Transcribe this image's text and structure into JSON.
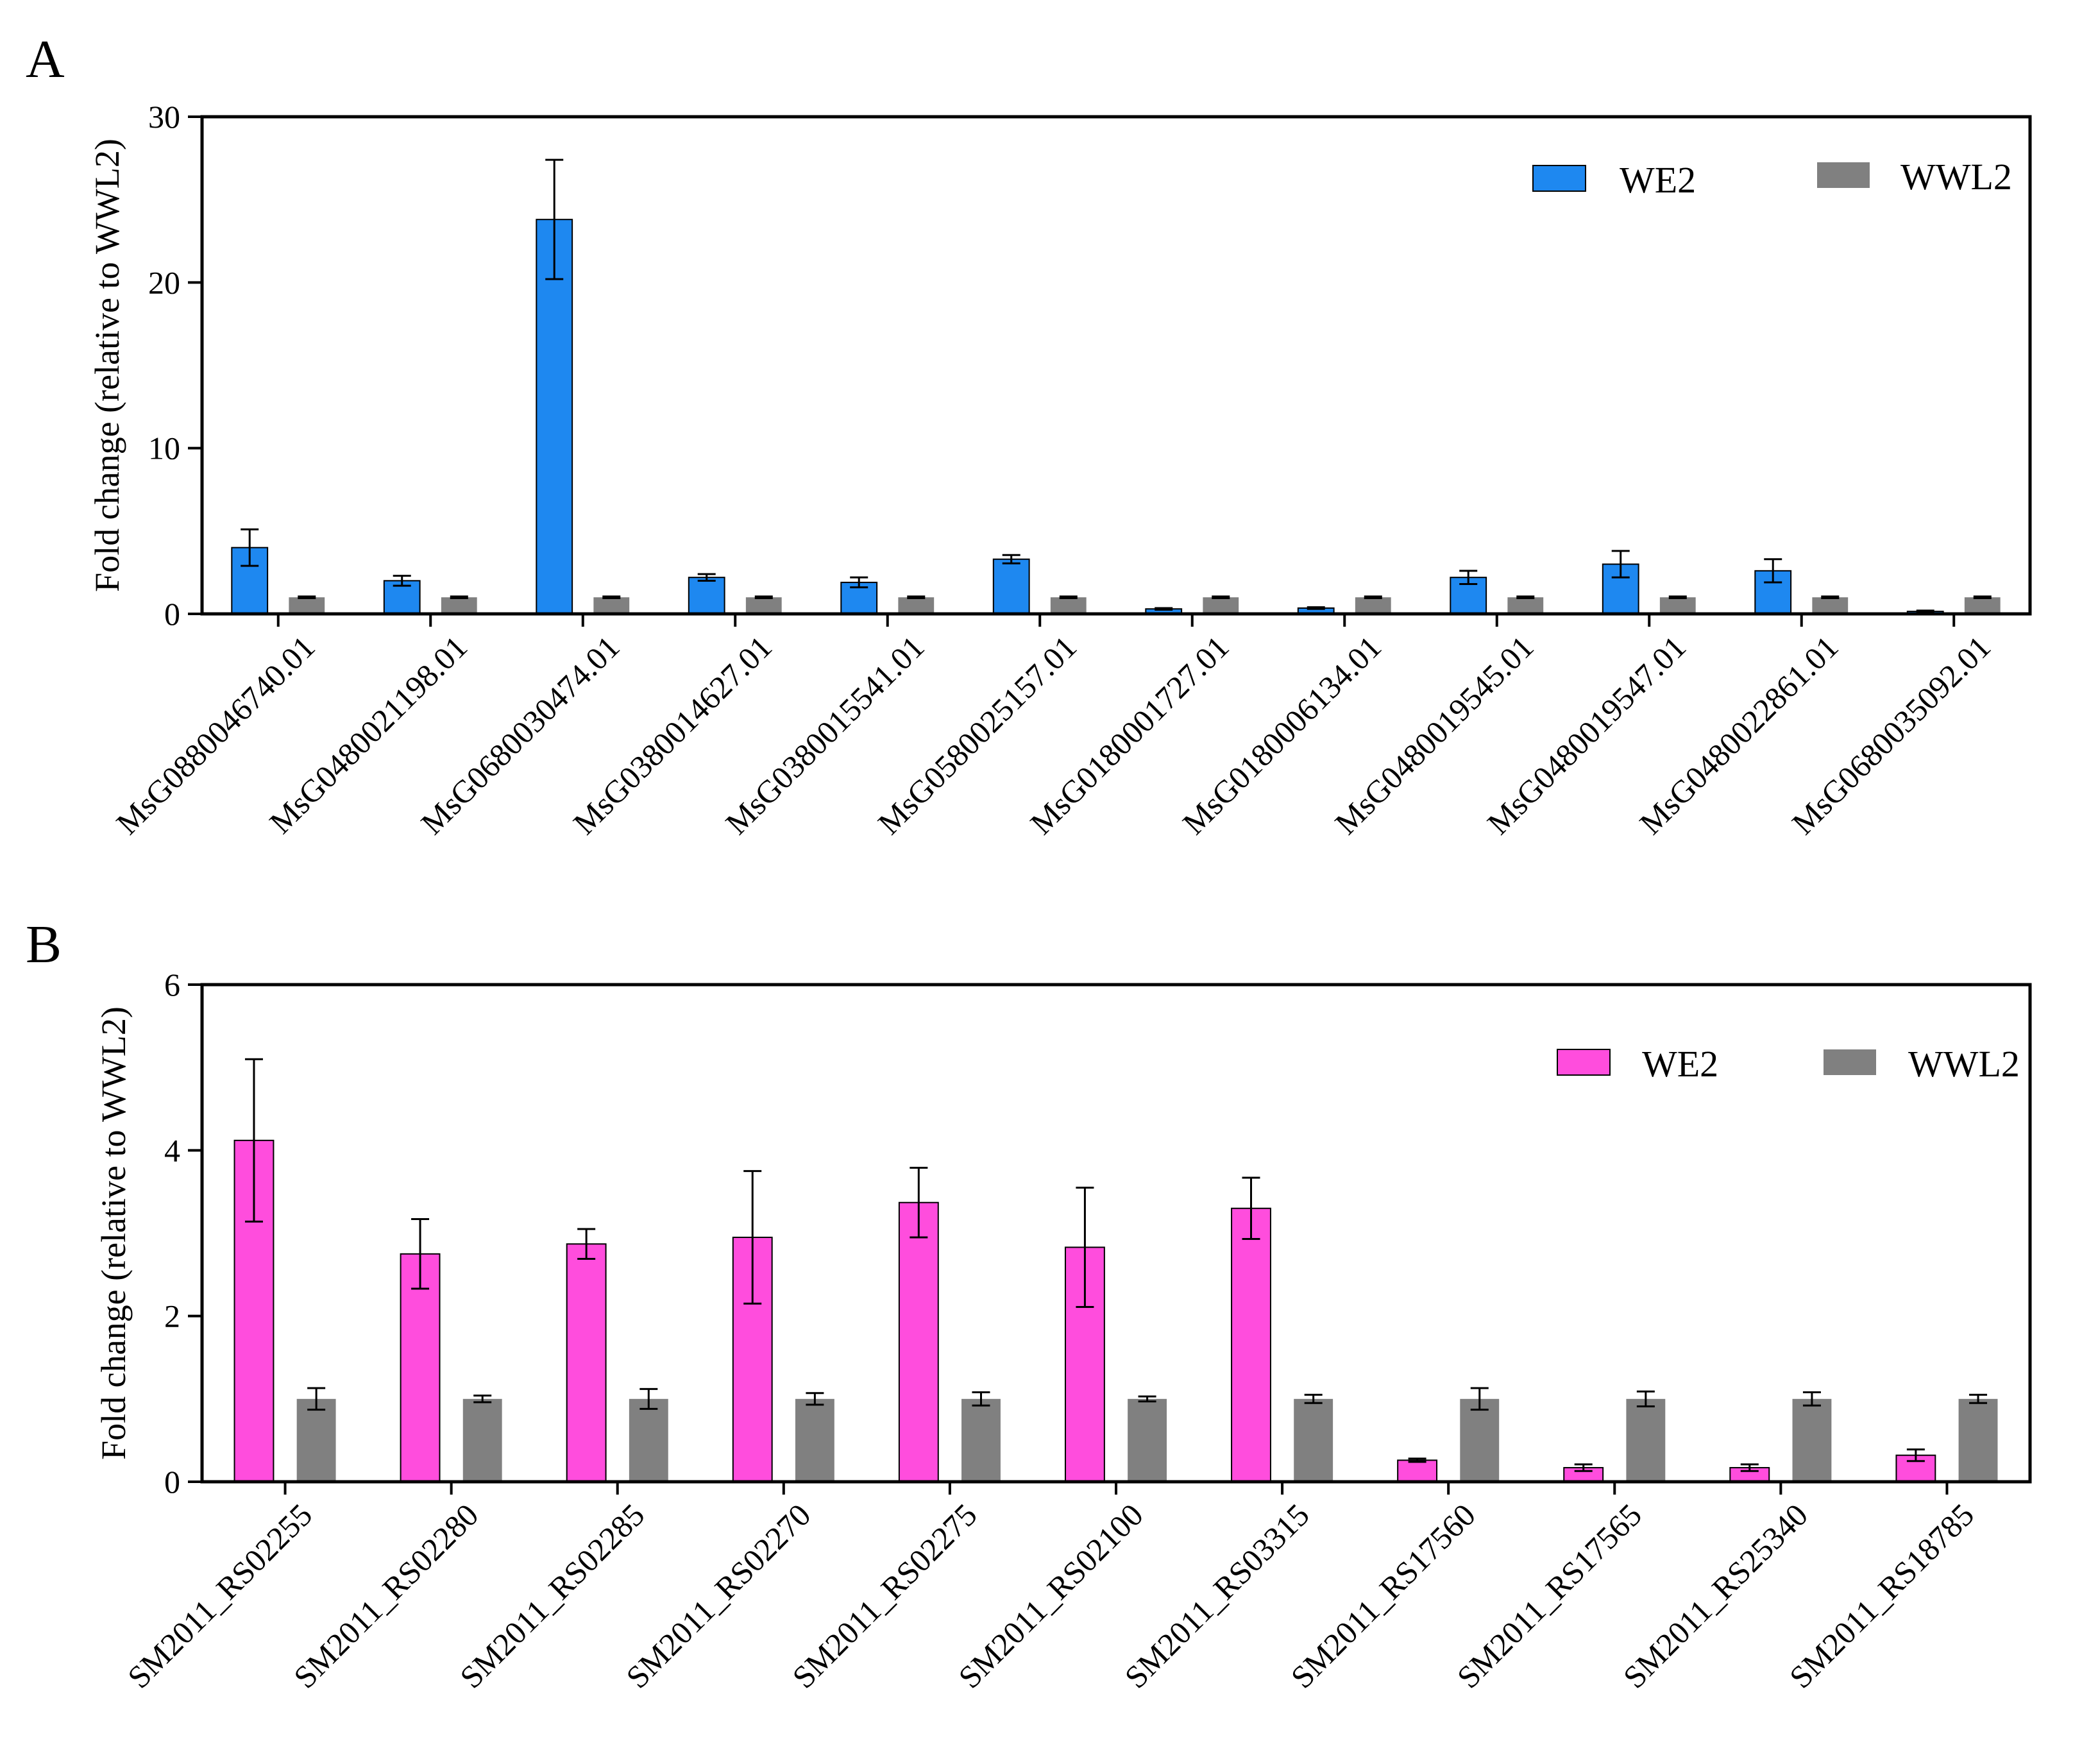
{
  "chart_data": [
    {
      "panel_label": "A",
      "type": "bar",
      "ylabel": "Fold change (relative to WWL2)",
      "ylim": [
        0,
        30
      ],
      "yticks": [
        0,
        10,
        20,
        30
      ],
      "categories": [
        "MsG0880046740.01",
        "MsG0480021198.01",
        "MsG0680030474.01",
        "MsG0380014627.01",
        "MsG0380015541.01",
        "MsG0580025157.01",
        "MsG0180001727.01",
        "MsG0180006134.01",
        "MsG0480019545.01",
        "MsG0480019547.01",
        "MsG0480022861.01",
        "MsG0680035092.01"
      ],
      "legend_position": "top-right",
      "series": [
        {
          "name": "WE2",
          "color": "#1e88f0",
          "values": [
            4.0,
            2.0,
            23.8,
            2.2,
            1.9,
            3.3,
            0.3,
            0.35,
            2.2,
            3.0,
            2.6,
            0.15
          ],
          "errors": [
            1.1,
            0.3,
            3.6,
            0.2,
            0.3,
            0.25,
            0.05,
            0.05,
            0.4,
            0.8,
            0.7,
            0.05
          ]
        },
        {
          "name": "WWL2",
          "color": "#808080",
          "values": [
            1,
            1,
            1,
            1,
            1,
            1,
            1,
            1,
            1,
            1,
            1,
            1
          ],
          "errors": [
            0.05,
            0.05,
            0.05,
            0.05,
            0.05,
            0.05,
            0.05,
            0.05,
            0.05,
            0.05,
            0.05,
            0.05
          ]
        }
      ]
    },
    {
      "panel_label": "B",
      "type": "bar",
      "ylabel": "Fold change (relative to WWL2)",
      "ylim": [
        0,
        6
      ],
      "yticks": [
        0,
        2,
        4,
        6
      ],
      "categories": [
        "SM2011_RS02255",
        "SM2011_RS02280",
        "SM2011_RS02285",
        "SM2011_RS02270",
        "SM2011_RS02275",
        "SM2011_RS02100",
        "SM2011_RS03315",
        "SM2011_RS17560",
        "SM2011_RS17565",
        "SM2011_RS25340",
        "SM2011_RS18785"
      ],
      "legend_position": "top-right",
      "series": [
        {
          "name": "WE2",
          "color": "#ff4ddd",
          "values": [
            4.12,
            2.75,
            2.87,
            2.95,
            3.37,
            2.83,
            3.3,
            0.26,
            0.17,
            0.17,
            0.32
          ],
          "errors": [
            0.98,
            0.42,
            0.18,
            0.8,
            0.42,
            0.72,
            0.37,
            0.02,
            0.04,
            0.04,
            0.07
          ]
        },
        {
          "name": "WWL2",
          "color": "#808080",
          "values": [
            1,
            1,
            1,
            1,
            1,
            1,
            1,
            1,
            1,
            1,
            1
          ],
          "errors": [
            0.13,
            0.04,
            0.12,
            0.07,
            0.08,
            0.03,
            0.05,
            0.13,
            0.09,
            0.08,
            0.05
          ]
        }
      ]
    }
  ]
}
